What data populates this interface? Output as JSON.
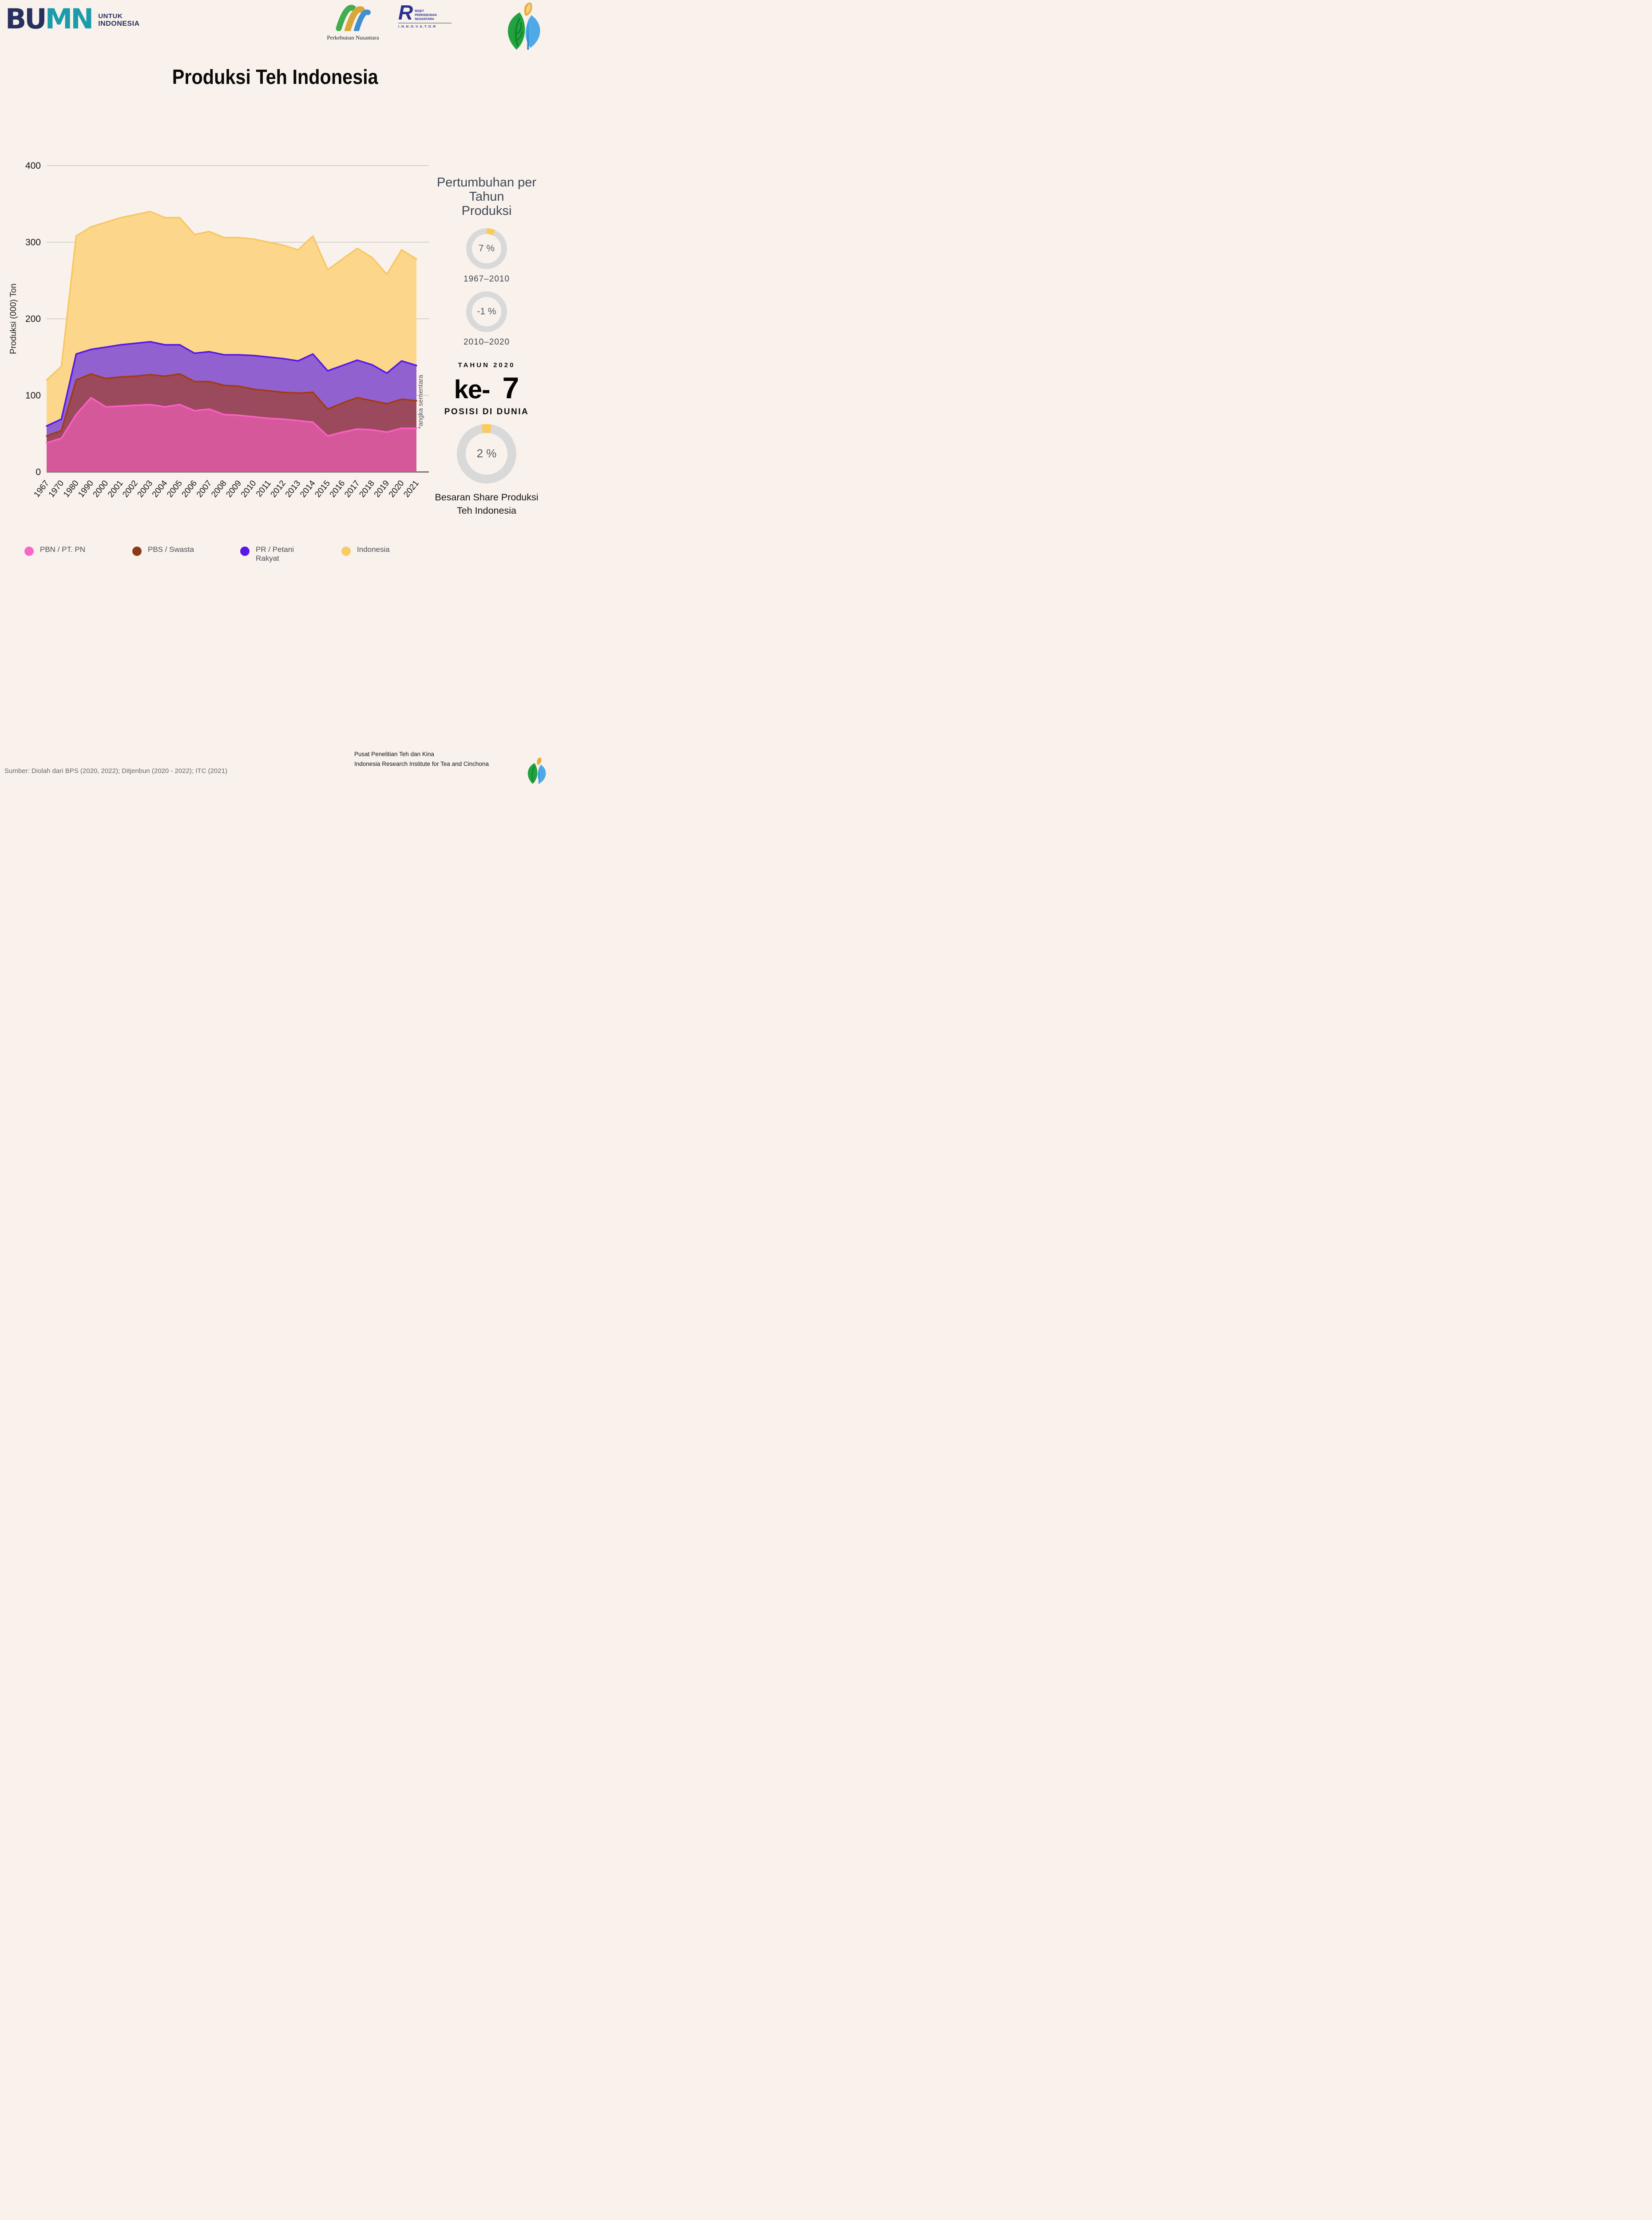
{
  "page": {
    "bg": "#f9f2ec"
  },
  "header": {
    "bumn": {
      "word_part1": "BU",
      "word_part2": "MN",
      "tag_line1": "UNTUK",
      "tag_line2": "INDONESIA"
    },
    "ptpn": {
      "caption": "Perkebunan Nusantara"
    },
    "rpn": {
      "letter": "R",
      "line1": "RISET",
      "line2": "PERKEBUNAN",
      "line3": "NUSANTARA",
      "innovator": "I.N.N.O.V.A.T.O.R"
    },
    "leaf_icon": "tea-leaf-logo"
  },
  "title": "Produksi Teh Indonesia",
  "chart_data": {
    "type": "area",
    "stacked": true,
    "title": "Produksi Teh Indonesia",
    "xlabel": "",
    "ylabel": "Produksi (000) Ton",
    "ylim": [
      0,
      400
    ],
    "yticks": [
      0,
      100,
      200,
      300,
      400
    ],
    "grid": true,
    "note": "*angka sementara",
    "categories": [
      "1967",
      "1970",
      "1980",
      "1990",
      "2000",
      "2001",
      "2002",
      "2003",
      "2004",
      "2005",
      "2006",
      "2007",
      "2008",
      "2009",
      "2010",
      "2011",
      "2012",
      "2013",
      "2014",
      "2015",
      "2016",
      "2017",
      "2018",
      "2019",
      "2020",
      "2021"
    ],
    "series": [
      {
        "name": "PBN / PT. PN",
        "fill": "#d5589b",
        "stroke": "#fd5fc6",
        "values": [
          38,
          44,
          75,
          97,
          85,
          86,
          87,
          88,
          85,
          88,
          80,
          82,
          75,
          74,
          72,
          70,
          69,
          67,
          65,
          47,
          52,
          56,
          55,
          52,
          57,
          57
        ]
      },
      {
        "name": "PBS /  Swasta",
        "fill": "#9b4a5e",
        "stroke": "#a33b10",
        "values": [
          9,
          10,
          45,
          31,
          37,
          38,
          38,
          39,
          40,
          40,
          38,
          36,
          38,
          38,
          36,
          36,
          35,
          36,
          39,
          35,
          38,
          41,
          38,
          37,
          38,
          36
        ]
      },
      {
        "name": "PR / Petani Rakyat",
        "fill": "#9162cf",
        "stroke": "#5418e8",
        "values": [
          13,
          15,
          34,
          32,
          41,
          42,
          43,
          43,
          41,
          38,
          37,
          39,
          40,
          41,
          44,
          44,
          44,
          42,
          50,
          50,
          49,
          49,
          47,
          40,
          50,
          46
        ]
      },
      {
        "name": "Indonesia",
        "fill": "#fcd78b",
        "stroke": "#f8c763",
        "values": [
          60,
          69,
          154,
          160,
          163,
          166,
          168,
          170,
          166,
          166,
          155,
          157,
          153,
          153,
          152,
          150,
          148,
          145,
          154,
          132,
          139,
          146,
          140,
          129,
          145,
          139
        ]
      }
    ],
    "legend_position": "bottom"
  },
  "legend": [
    {
      "label": "PBN / PT. PN",
      "color": "#f767c8"
    },
    {
      "label": "PBS /  Swasta",
      "color": "#8c3a17"
    },
    {
      "label": "PR / Petani Rakyat",
      "color": "#5a17e8"
    },
    {
      "label": "Indonesia",
      "color": "#f9cb66"
    }
  ],
  "sidebar": {
    "growth": {
      "title_line1": "Pertumbuhan per Tahun",
      "title_line2": "Produksi",
      "donuts": [
        {
          "value_label": "7 %",
          "period": "1967–2010",
          "arc_percent": 7,
          "arc_from_deg": 0
        },
        {
          "value_label": "-1 %",
          "period": "2010–2020",
          "arc_percent": 0,
          "arc_from_deg": 0
        }
      ]
    },
    "rank": {
      "kicker": "TAHUN 2020",
      "big_prefix": "ke-",
      "big_number": "7",
      "sub": "POSISI DI DUNIA"
    },
    "share": {
      "value_label": "2 %",
      "arc_percent": 5.5,
      "arc_from_deg": -10,
      "caption_line1": "Besaran Share Produksi",
      "caption_line2": "Teh Indonesia"
    }
  },
  "footer": {
    "source": "Sumber: Diolah dari BPS (2020, 2022); Ditjenbun (2020 - 2022); ITC (2021)",
    "org_line1": "Pusat Penelitian Teh dan Kina",
    "org_line2": "Indonesia Research Institute for Tea and Cinchona"
  },
  "donut_colors": {
    "track": "#d9d9d9",
    "arc": "#f9cb5f"
  }
}
